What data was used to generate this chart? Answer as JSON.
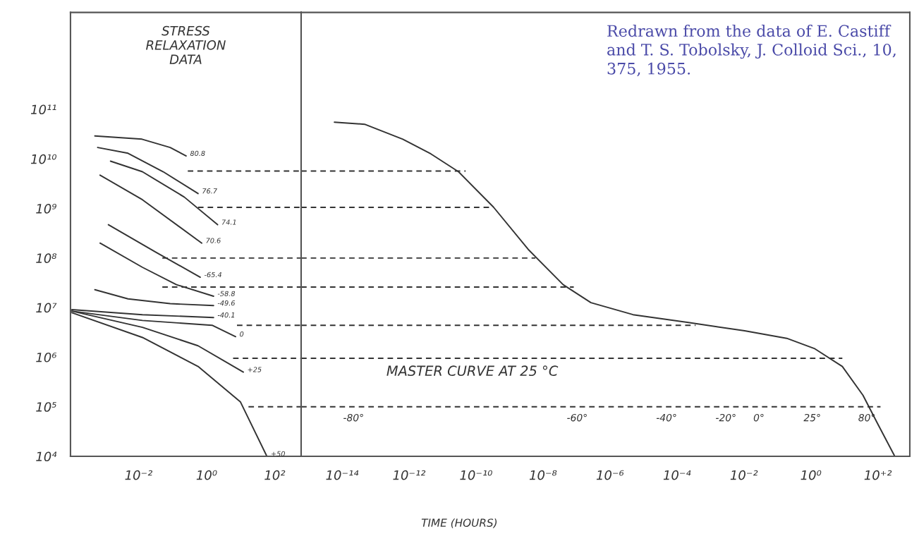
{
  "chart_data": [
    {
      "type": "line",
      "title": "STRESS RELAXATION DATA",
      "log": "xy",
      "line_style": "solid",
      "xlim": [
        0.0001,
        600
      ],
      "ylim": [
        10000,
        9000000000000.0
      ],
      "xticks": [
        {
          "value": 0.01,
          "label": "10⁻²"
        },
        {
          "value": 1,
          "label": "10⁰"
        },
        {
          "value": 100,
          "label": "10²"
        }
      ],
      "yticks": [
        {
          "value": 10000,
          "label": "10⁴"
        },
        {
          "value": 100000,
          "label": "10⁵"
        },
        {
          "value": 1000000,
          "label": "10⁶"
        },
        {
          "value": 10000000,
          "label": "10⁷"
        },
        {
          "value": 100000000,
          "label": "10⁸"
        },
        {
          "value": 1000000000,
          "label": "10⁹"
        },
        {
          "value": 10000000000,
          "label": "10¹⁰"
        },
        {
          "value": 100000000000,
          "label": "10¹¹"
        }
      ],
      "series": [
        {
          "name": "80.8",
          "color": "#333333",
          "x": [
            0.00052,
            0.0126,
            0.085,
            0.25
          ],
          "values": [
            29000000000.0,
            25000000000.0,
            17000000000.0,
            11500000000.0
          ]
        },
        {
          "name": "76.7",
          "color": "#333333",
          "x": [
            0.00063,
            0.0049,
            0.053,
            0.56
          ],
          "values": [
            17000000000.0,
            13000000000.0,
            5500000000.0,
            2000000000.0
          ]
        },
        {
          "name": "74.1",
          "color": "#333333",
          "x": [
            0.0015,
            0.013,
            0.22,
            2.1
          ],
          "values": [
            9000000000.0,
            5500000000.0,
            1700000000.0,
            470000000.0
          ]
        },
        {
          "name": "70.6",
          "color": "#333333",
          "x": [
            0.00074,
            0.013,
            0.72
          ],
          "values": [
            4700000000.0,
            1500000000.0,
            200000000.0
          ]
        },
        {
          "name": "-65.4",
          "color": "#333333",
          "x": [
            0.0013,
            0.033,
            0.65
          ],
          "values": [
            470000000.0,
            130000000.0,
            41000000.0
          ]
        },
        {
          "name": "-58.8",
          "color": "#333333",
          "x": [
            0.00074,
            0.013,
            0.13,
            1.6
          ],
          "values": [
            200000000.0,
            65000000.0,
            29000000.0,
            17000000.0
          ]
        },
        {
          "name": "-49.6",
          "color": "#333333",
          "x": [
            0.00052,
            0.0049,
            0.085,
            1.6
          ],
          "values": [
            23000000.0,
            15000000.0,
            12000000.0,
            11000000.0
          ]
        },
        {
          "name": "-40.1",
          "color": "#333333",
          "x": [
            0.00011,
            0.013,
            1.6
          ],
          "values": [
            9100000.0,
            7200000.0,
            6300000.0
          ]
        },
        {
          "name": "0",
          "color": "#333333",
          "x": [
            0.00011,
            0.013,
            1.45,
            7.1
          ],
          "values": [
            8500000.0,
            5500000.0,
            4400000.0,
            2600000.0
          ]
        },
        {
          "name": "+25",
          "color": "#333333",
          "x": [
            0.00011,
            0.013,
            0.56,
            12
          ],
          "values": [
            8500000.0,
            4000000.0,
            1700000.0,
            500000.0
          ]
        },
        {
          "name": "+50",
          "color": "#333333",
          "x": [
            0.00011,
            0.013,
            0.56,
            9.8,
            59
          ],
          "values": [
            7900000.0,
            2500000.0,
            650000.0,
            126000.0,
            10000
          ]
        },
        {
          "color": "#333333",
          "line_style": "dashed",
          "x": [
            0.28,
            600
          ],
          "values": [
            5700000000.0,
            5700000000.0
          ]
        },
        {
          "color": "#333333",
          "line_style": "dashed",
          "x": [
            0.56,
            600
          ],
          "values": [
            1050000000.0,
            1050000000.0
          ]
        },
        {
          "color": "#333333",
          "line_style": "dashed",
          "x": [
            0.05,
            600
          ],
          "values": [
            100000000.0,
            100000000.0
          ]
        },
        {
          "color": "#333333",
          "line_style": "dashed",
          "x": [
            0.05,
            600
          ],
          "values": [
            26000000.0,
            26000000.0
          ]
        },
        {
          "color": "#333333",
          "line_style": "dashed",
          "x": [
            7.8,
            600
          ],
          "values": [
            4400000.0,
            4400000.0
          ]
        },
        {
          "color": "#333333",
          "line_style": "dashed",
          "x": [
            6,
            600
          ],
          "values": [
            950000.0,
            950000.0
          ]
        },
        {
          "color": "#333333",
          "line_style": "dashed",
          "x": [
            17,
            600
          ],
          "values": [
            100000,
            100000
          ]
        }
      ]
    },
    {
      "type": "line",
      "log": "xy",
      "line_style": "solid",
      "tick_labels": "x",
      "xlabel": "TIME (HOURS)",
      "xlim": [
        6e-16,
        900
      ],
      "ylim": [
        10000,
        9000000000000.0
      ],
      "xticks": [
        {
          "value": 1e-14,
          "label": "10⁻¹⁴"
        },
        {
          "value": 1e-12,
          "label": "10⁻¹²"
        },
        {
          "value": 1e-10,
          "label": "10⁻¹⁰"
        },
        {
          "value": 1e-08,
          "label": "10⁻⁸"
        },
        {
          "value": 1e-06,
          "label": "10⁻⁶"
        },
        {
          "value": 0.0001,
          "label": "10⁻⁴"
        },
        {
          "value": 0.01,
          "label": "10⁻²"
        },
        {
          "value": 1,
          "label": "10⁰"
        },
        {
          "value": 100,
          "label": "10⁺²"
        }
      ],
      "yticks": [
        {
          "value": 10000,
          "label": null
        },
        {
          "value": 100000,
          "label": null
        },
        {
          "value": 1000000,
          "label": null
        },
        {
          "value": 10000000,
          "label": null
        },
        {
          "value": 100000000,
          "label": null
        },
        {
          "value": 1000000000,
          "label": null
        },
        {
          "value": 10000000000,
          "label": null
        },
        {
          "value": 100000000000,
          "label": null
        }
      ],
      "series": [
        {
          "color": "#333333",
          "x": [
            5.9e-15,
            4.7e-14,
            6.5e-13,
            4.5e-12,
            3e-11,
            3.3e-10,
            3.6e-09,
            4e-08,
            2.7e-07,
            4.9e-06,
            0.00022,
            0.0105,
            0.19,
            1.26,
            8.7,
            36,
            96,
            320
          ],
          "values": [
            55000000000.0,
            50000000000.0,
            25000000000.0,
            12600000000.0,
            5500000000.0,
            1070000000.0,
            150000000.0,
            29000000.0,
            12600000.0,
            7200000.0,
            5000000.0,
            3400000.0,
            2400000.0,
            1500000.0,
            650000.0,
            170000.0,
            47000.0,
            10000
          ]
        },
        {
          "color": "#333333",
          "line_style": "dashed",
          "x": [
            6e-16,
            4.9e-11
          ],
          "values": [
            5700000000.0,
            5700000000.0
          ]
        },
        {
          "color": "#333333",
          "line_style": "dashed",
          "x": [
            6e-16,
            3.3e-10
          ],
          "values": [
            1050000000.0,
            1050000000.0
          ]
        },
        {
          "color": "#333333",
          "line_style": "dashed",
          "x": [
            6e-16,
            5.9e-09
          ],
          "values": [
            100000000.0,
            100000000.0
          ]
        },
        {
          "color": "#333333",
          "line_style": "dashed",
          "x": [
            6e-16,
            8.3e-08
          ],
          "values": [
            26000000.0,
            26000000.0
          ]
        },
        {
          "color": "#333333",
          "line_style": "dashed",
          "x": [
            6e-16,
            0.00036
          ],
          "values": [
            4400000.0,
            4400000.0
          ]
        },
        {
          "color": "#333333",
          "line_style": "dashed",
          "x": [
            6e-16,
            8.7
          ],
          "values": [
            950000.0,
            950000.0
          ]
        },
        {
          "color": "#333333",
          "line_style": "dashed",
          "x": [
            6e-16,
            120
          ],
          "values": [
            100000,
            100000
          ]
        }
      ],
      "annotations": [
        "MASTER CURVE AT 25 °C",
        "Redrawn from the data of E. Castiff and T. S. Tobolsky, J. Colloid Sci., 10, 375, 1955.",
        {
          "text": "-80°",
          "x": 2.2e-14,
          "y": 100000
        },
        {
          "text": "-60°",
          "x": 1.05e-07,
          "y": 100000
        },
        {
          "text": "-40°",
          "x": 4.9e-05,
          "y": 100000
        },
        {
          "text": "-20°",
          "x": 0.0029,
          "y": 100000
        },
        {
          "text": "0°",
          "x": 0.028,
          "y": 100000
        },
        {
          "text": "25°",
          "x": 1.1,
          "y": 100000
        },
        {
          "text": "80°",
          "x": 47,
          "y": 100000
        }
      ]
    }
  ]
}
